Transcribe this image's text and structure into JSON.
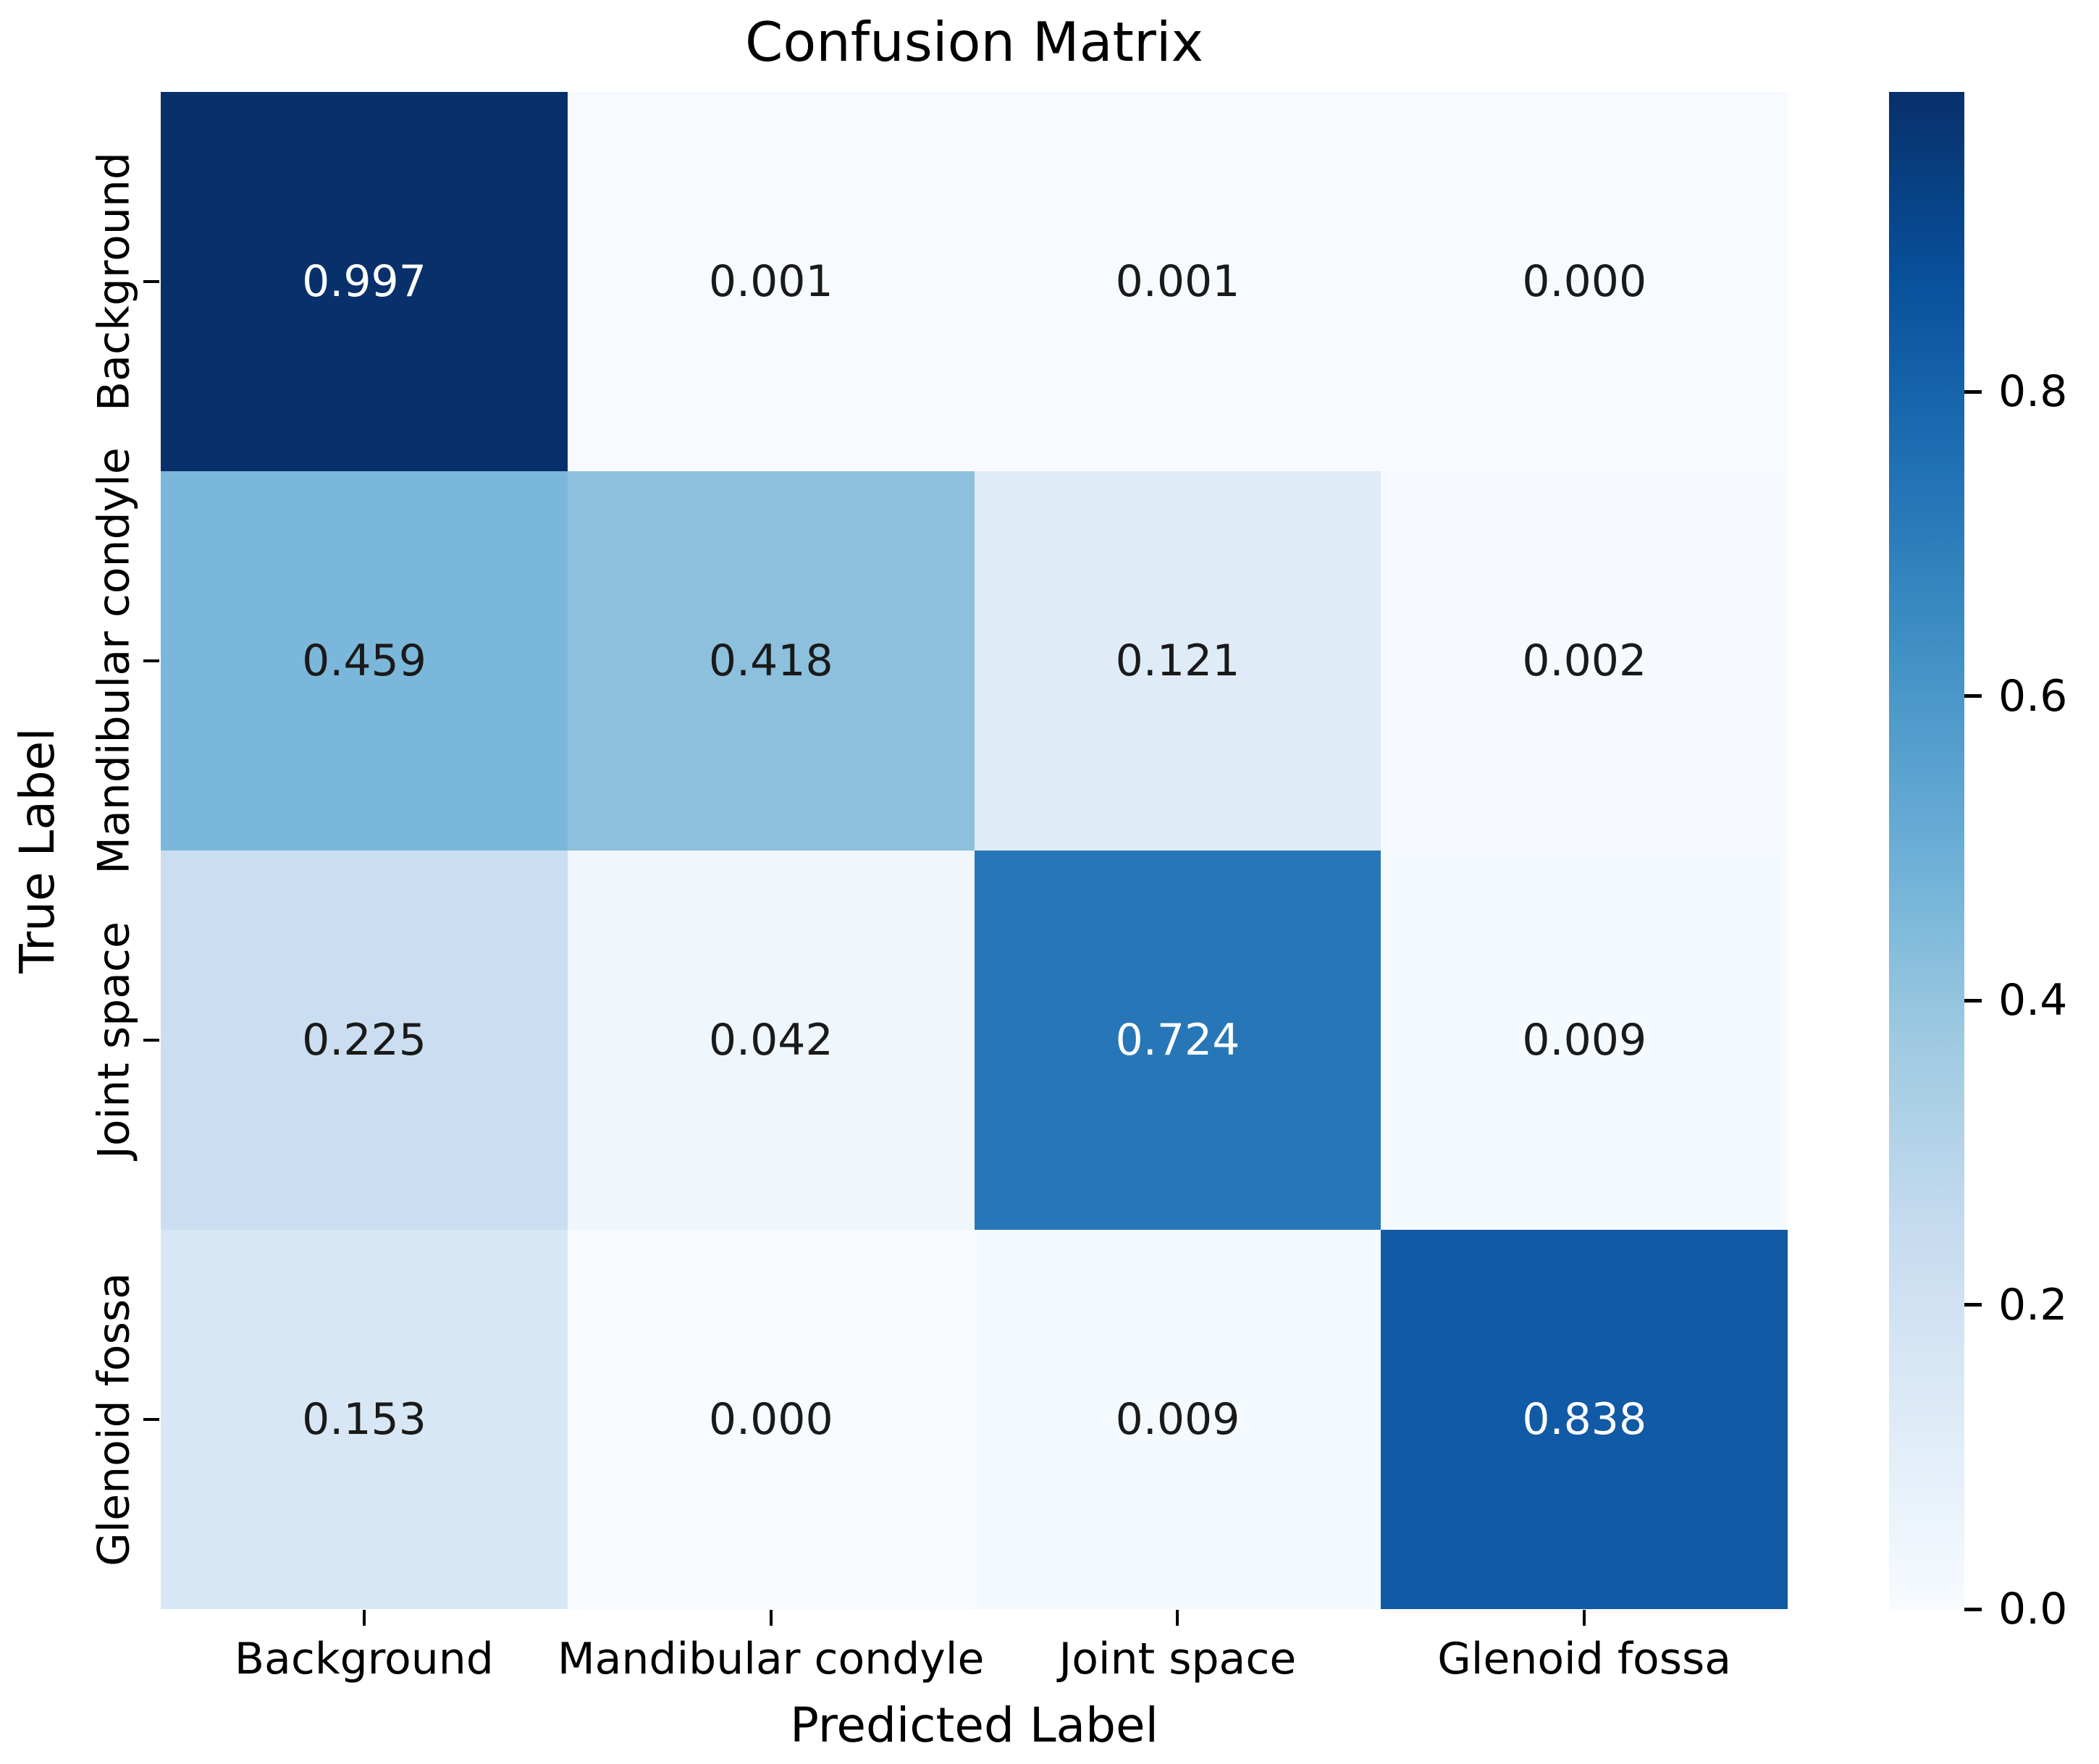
{
  "chart_data": {
    "type": "heatmap",
    "title": "Confusion Matrix",
    "xlabel": "Predicted Label",
    "ylabel": "True Label",
    "x_categories": [
      "Background",
      "Mandibular condyle",
      "Joint space",
      "Glenoid fossa"
    ],
    "y_categories": [
      "Background",
      "Mandibular condyle",
      "Joint space",
      "Glenoid fossa"
    ],
    "values": [
      [
        0.997,
        0.001,
        0.001,
        0.0
      ],
      [
        0.459,
        0.418,
        0.121,
        0.002
      ],
      [
        0.225,
        0.042,
        0.724,
        0.009
      ],
      [
        0.153,
        0.0,
        0.009,
        0.838
      ]
    ],
    "cell_labels": [
      [
        "0.997",
        "0.001",
        "0.001",
        "0.000"
      ],
      [
        "0.459",
        "0.418",
        "0.121",
        "0.002"
      ],
      [
        "0.225",
        "0.042",
        "0.724",
        "0.009"
      ],
      [
        "0.153",
        "0.000",
        "0.009",
        "0.838"
      ]
    ],
    "cell_colors": [
      [
        "#08306b",
        "#f7fbff",
        "#f7fbff",
        "#f7fbff"
      ],
      [
        "#7bb7da",
        "#8cc0dd",
        "#dfebf7",
        "#f6fafe"
      ],
      [
        "#cbdef1",
        "#eff6fc",
        "#2777b8",
        "#f5fafe"
      ],
      [
        "#d8e7f5",
        "#f7fbff",
        "#f5fafe",
        "#115aa5"
      ]
    ],
    "cell_text_colors": [
      [
        "#ffffff",
        "#1a1a1a",
        "#1a1a1a",
        "#1a1a1a"
      ],
      [
        "#1a1a1a",
        "#1a1a1a",
        "#1a1a1a",
        "#1a1a1a"
      ],
      [
        "#1a1a1a",
        "#1a1a1a",
        "#ffffff",
        "#1a1a1a"
      ],
      [
        "#1a1a1a",
        "#1a1a1a",
        "#1a1a1a",
        "#ffffff"
      ]
    ],
    "grid": false,
    "legend_position": "right-colorbar",
    "colorbar": {
      "vmin": 0.0,
      "vmax": 0.997,
      "tick_values": [
        0.0,
        0.2,
        0.4,
        0.6,
        0.8
      ],
      "tick_labels": [
        "0.0",
        "0.2",
        "0.4",
        "0.6",
        "0.8"
      ]
    },
    "colormap": {
      "name": "Blues",
      "stops": [
        {
          "pos": 0.0,
          "color": "#f7fbff"
        },
        {
          "pos": 0.125,
          "color": "#deebf7"
        },
        {
          "pos": 0.25,
          "color": "#c6dbef"
        },
        {
          "pos": 0.375,
          "color": "#9ecae1"
        },
        {
          "pos": 0.5,
          "color": "#6baed6"
        },
        {
          "pos": 0.625,
          "color": "#4292c6"
        },
        {
          "pos": 0.75,
          "color": "#2171b5"
        },
        {
          "pos": 0.875,
          "color": "#08519c"
        },
        {
          "pos": 1.0,
          "color": "#08306b"
        }
      ]
    }
  }
}
